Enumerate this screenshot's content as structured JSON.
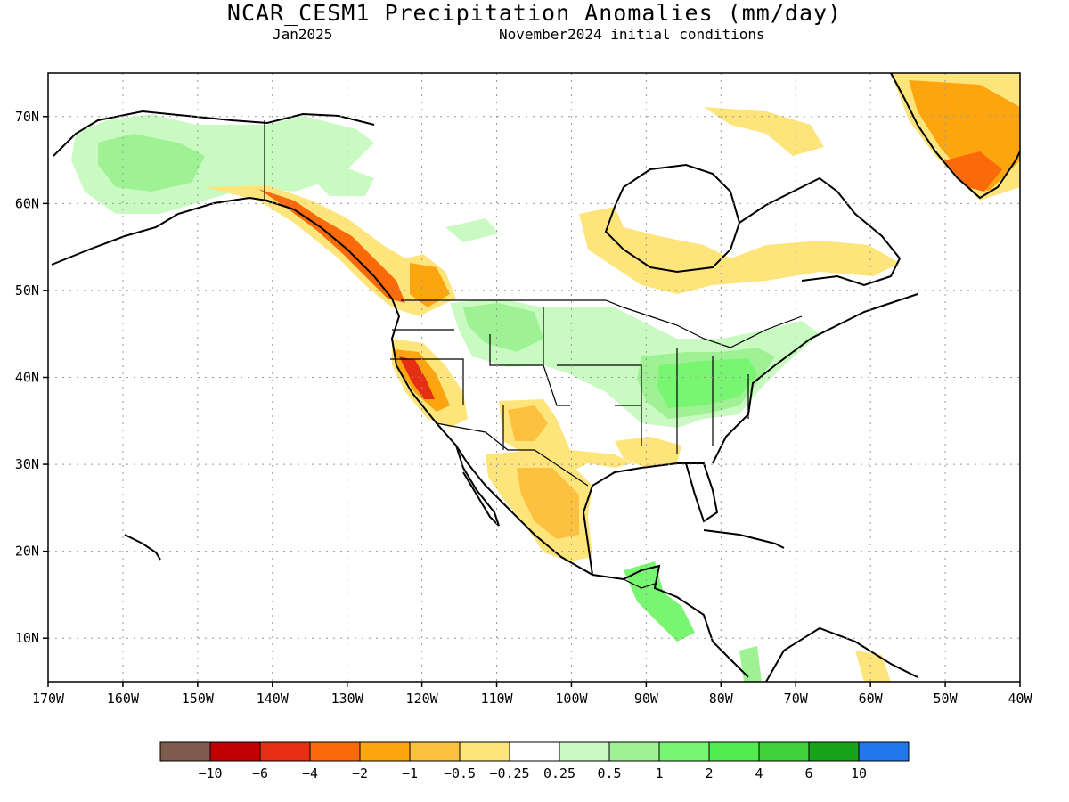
{
  "title": "NCAR_CESM1 Precipitation Anomalies (mm/day)",
  "subtitle_left": "Jan2025",
  "subtitle_right": "November2024 initial conditions",
  "map": {
    "projection": "cylindrical equidistant",
    "lon_range": [
      -170,
      -40
    ],
    "lat_range": [
      5,
      75
    ],
    "grid": "dotted",
    "lat_ticks": [
      {
        "value": 70,
        "label": "70N"
      },
      {
        "value": 60,
        "label": "60N"
      },
      {
        "value": 50,
        "label": "50N"
      },
      {
        "value": 40,
        "label": "40N"
      },
      {
        "value": 30,
        "label": "30N"
      },
      {
        "value": 20,
        "label": "20N"
      },
      {
        "value": 10,
        "label": "10N"
      }
    ],
    "lon_ticks": [
      {
        "value": -170,
        "label": "170W"
      },
      {
        "value": -160,
        "label": "160W"
      },
      {
        "value": -150,
        "label": "150W"
      },
      {
        "value": -140,
        "label": "140W"
      },
      {
        "value": -130,
        "label": "130W"
      },
      {
        "value": -120,
        "label": "120W"
      },
      {
        "value": -110,
        "label": "110W"
      },
      {
        "value": -100,
        "label": "100W"
      },
      {
        "value": -90,
        "label": "90W"
      },
      {
        "value": -80,
        "label": "80W"
      },
      {
        "value": -70,
        "label": "70W"
      },
      {
        "value": -60,
        "label": "60W"
      },
      {
        "value": -50,
        "label": "50W"
      },
      {
        "value": -40,
        "label": "40W"
      }
    ]
  },
  "colorbar": {
    "colors": [
      "#7f5b4e",
      "#c00000",
      "#e62e14",
      "#fa6a0b",
      "#fca50f",
      "#fdc03f",
      "#fde57c",
      "#ffffff",
      "#c9fac1",
      "#9ff293",
      "#78f571",
      "#52ec50",
      "#3fd23a",
      "#17a419",
      "#2277ee"
    ],
    "labels": [
      "−10",
      "−6",
      "−4",
      "−2",
      "−1",
      "−0.5",
      "−0.25",
      "0.25",
      "0.5",
      "1",
      "2",
      "4",
      "6",
      "10"
    ]
  },
  "anomaly_regions": [
    {
      "id": "alaska-wet",
      "color": "#9ff293"
    },
    {
      "id": "yukon-wet",
      "color": "#c9fac1"
    },
    {
      "id": "pacific-coast-dry",
      "color": "#fa6a0b"
    },
    {
      "id": "california-dry",
      "color": "#e62e14"
    },
    {
      "id": "mexico-dry",
      "color": "#fdc03f"
    },
    {
      "id": "southwest-dry",
      "color": "#fde57c"
    },
    {
      "id": "ohio-valley-wet",
      "color": "#78f571"
    },
    {
      "id": "plains-wet",
      "color": "#c9fac1"
    },
    {
      "id": "hudson-dry",
      "color": "#fde57c"
    },
    {
      "id": "greenland-dry",
      "color": "#fca50f"
    },
    {
      "id": "central-america-wet",
      "color": "#78f571"
    }
  ]
}
